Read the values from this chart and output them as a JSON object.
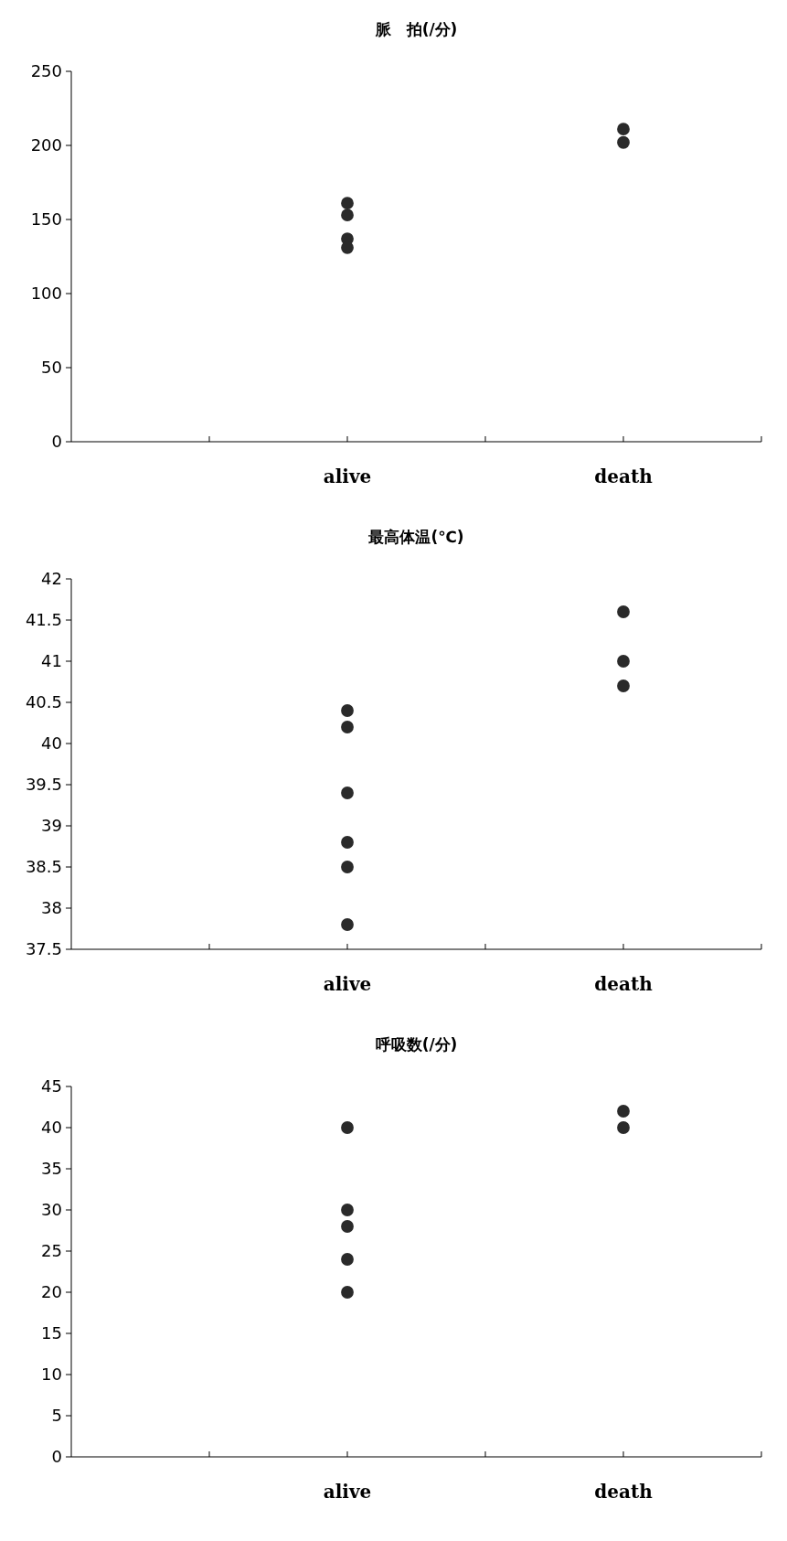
{
  "chart_data": [
    {
      "type": "scatter",
      "title": "脈　拍(/分)",
      "categories": [
        null,
        null,
        "alive",
        null,
        "death",
        null
      ],
      "marker": "circle",
      "series": [
        {
          "color": "#2a2a2a",
          "x": [
            "alive",
            "alive",
            "alive",
            "alive",
            "death",
            "death"
          ],
          "values": [
            161,
            153,
            137,
            131,
            211,
            202
          ]
        }
      ],
      "ylim": [
        0,
        250
      ],
      "yticks": [
        0,
        50,
        100,
        150,
        200,
        250
      ]
    },
    {
      "type": "scatter",
      "title": "最高体温(℃)",
      "categories": [
        null,
        null,
        "alive",
        null,
        "death",
        null
      ],
      "marker": "circle",
      "series": [
        {
          "color": "#2a2a2a",
          "x": [
            "alive",
            "alive",
            "alive",
            "alive",
            "alive",
            "alive",
            "death",
            "death",
            "death"
          ],
          "values": [
            40.4,
            40.2,
            39.4,
            38.8,
            38.5,
            37.8,
            41.6,
            41.0,
            40.7
          ]
        }
      ],
      "ylim": [
        37.5,
        42
      ],
      "yticks": [
        37.5,
        38,
        38.5,
        39,
        39.5,
        40,
        40.5,
        41,
        41.5,
        42
      ]
    },
    {
      "type": "scatter",
      "title": "呼吸数(/分)",
      "categories": [
        null,
        null,
        "alive",
        null,
        "death",
        null
      ],
      "marker": "circle",
      "series": [
        {
          "color": "#2a2a2a",
          "x": [
            "alive",
            "alive",
            "alive",
            "alive",
            "alive",
            "death",
            "death"
          ],
          "values": [
            40,
            30,
            28,
            24,
            20,
            42,
            40
          ]
        }
      ],
      "ylim": [
        0,
        45
      ],
      "yticks": [
        0,
        5,
        10,
        15,
        20,
        25,
        30,
        35,
        40,
        45
      ]
    }
  ]
}
